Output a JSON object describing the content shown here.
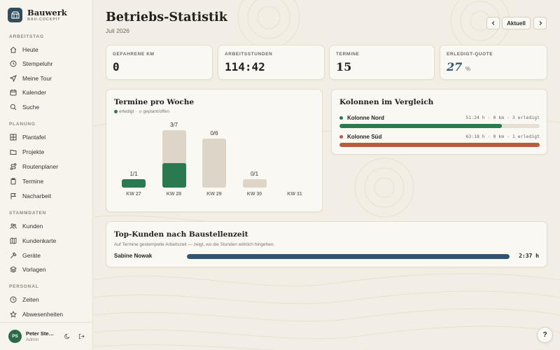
{
  "brand": {
    "name": "Bauwerk",
    "subtitle": "BAU-COCKPIT"
  },
  "sidebar": {
    "sections": [
      {
        "label": "ARBEITSTAG",
        "items": [
          {
            "label": "Heute",
            "icon": "home-icon"
          },
          {
            "label": "Stempeluhr",
            "icon": "clock-icon"
          },
          {
            "label": "Meine Tour",
            "icon": "navigation-icon"
          },
          {
            "label": "Kalender",
            "icon": "calendar-icon"
          },
          {
            "label": "Suche",
            "icon": "search-icon"
          }
        ]
      },
      {
        "label": "PLANUNG",
        "items": [
          {
            "label": "Plantafel",
            "icon": "grid-icon"
          },
          {
            "label": "Projekte",
            "icon": "folder-icon"
          },
          {
            "label": "Routenplaner",
            "icon": "route-icon"
          },
          {
            "label": "Termine",
            "icon": "clipboard-icon"
          },
          {
            "label": "Nacharbeit",
            "icon": "flag-icon"
          }
        ]
      },
      {
        "label": "STAMMDATEN",
        "items": [
          {
            "label": "Kunden",
            "icon": "users-icon"
          },
          {
            "label": "Kundenkarte",
            "icon": "map-icon"
          },
          {
            "label": "Geräte",
            "icon": "hammer-icon"
          },
          {
            "label": "Vorlagen",
            "icon": "layers-icon"
          }
        ]
      },
      {
        "label": "PERSONAL",
        "items": [
          {
            "label": "Zeiten",
            "icon": "clock-icon"
          },
          {
            "label": "Abwesenheiten",
            "icon": "star-icon"
          }
        ]
      }
    ],
    "user": {
      "initials": "PS",
      "name": "Peter Ste…",
      "role": "Admin"
    }
  },
  "header": {
    "title": "Betriebs-Statistik",
    "subtitle": "Juli 2026",
    "current_label": "Aktuell"
  },
  "kpis": [
    {
      "label": "GEFAHRENE KM",
      "value": "0"
    },
    {
      "label": "ARBEITSSTUNDEN",
      "value": "114:42"
    },
    {
      "label": "TERMINE",
      "value": "15"
    },
    {
      "label": "ERLEDIGT-QUOTE",
      "value": "27",
      "unit": "%"
    }
  ],
  "termine_card": {
    "title": "Termine pro Woche",
    "legend_done": "erledigt",
    "legend_separator": "·",
    "legend_planned": "geplant/offen"
  },
  "chart_data": {
    "type": "bar",
    "categories": [
      "KW 27",
      "KW 28",
      "KW 29",
      "KW 30",
      "KW 31"
    ],
    "series": [
      {
        "name": "erledigt",
        "values": [
          1,
          3,
          0,
          0,
          0
        ]
      },
      {
        "name": "geplant/offen",
        "values": [
          0,
          4,
          6,
          1,
          0
        ]
      }
    ],
    "labels": [
      "1/1",
      "3/7",
      "0/6",
      "0/1",
      ""
    ],
    "colors": {
      "erledigt": "#2b7a4f",
      "geplant/offen": "#ddd6c8"
    }
  },
  "kolonnen_card": {
    "title": "Kolonnen im Vergleich",
    "rows": [
      {
        "name": "Kolonne Nord",
        "meta": "51:24 h · 0 km · 3 erledigt",
        "color": "#2b7a4f",
        "progress": 0.81
      },
      {
        "name": "Kolonne Süd",
        "meta": "63:18 h · 0 km · 1 erledigt",
        "color": "#b85a3e",
        "progress": 1.0
      }
    ]
  },
  "kunden_card": {
    "title": "Top-Kunden nach Baustellenzeit",
    "subtitle": "Auf Termine gestempelte Arbeitszeit — zeigt, wo die Stunden wirklich hingehen.",
    "rows": [
      {
        "name": "Sabine Nowak",
        "value": "2:37 h",
        "progress": 1.0,
        "color": "#2f5570"
      }
    ]
  },
  "help": {
    "label": "?"
  }
}
